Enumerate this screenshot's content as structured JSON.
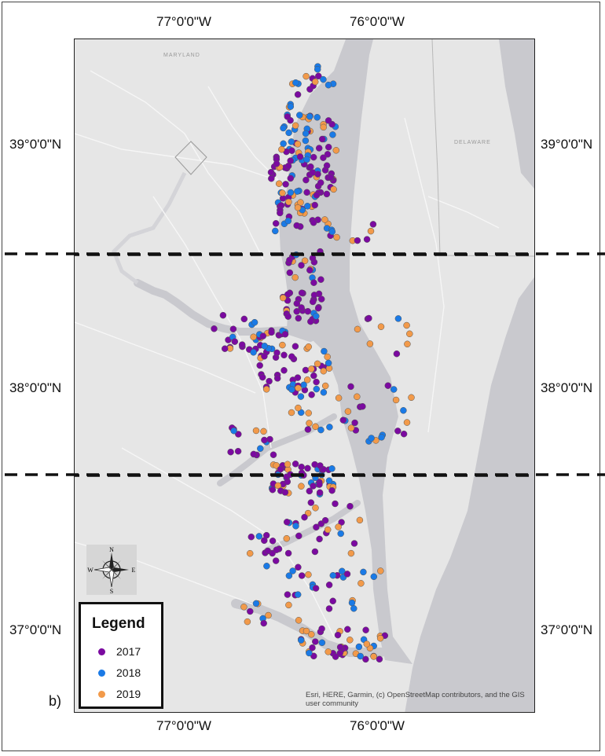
{
  "map": {
    "panel_label": "b)",
    "attribution": "Esri, HERE, Garmin, (c) OpenStreetMap contributors, and the GIS user community",
    "longitude_labels": [
      "77°0'0\"W",
      "76°0'0\"W"
    ],
    "latitude_labels": [
      "39°0'0\"N",
      "38°0'0\"N",
      "37°0'0\"N"
    ],
    "place_labels": [
      "MARYLAND",
      "DELAWARE"
    ],
    "region_divider_count": 2,
    "colors": {
      "land": "#e6e6e6",
      "water": "#c9c9ce",
      "ocean": "#c9c9ce",
      "divider": "#111111",
      "y2017": "#7b0aa0",
      "y2018": "#1a7ae6",
      "y2019": "#f29a4a"
    }
  },
  "compass": {
    "icon": "compass-rose-icon",
    "n": "N",
    "s": "S",
    "e": "E",
    "w": "W"
  },
  "legend": {
    "title": "Legend",
    "items": [
      {
        "label": "2017",
        "color": "#7b0aa0"
      },
      {
        "label": "2018",
        "color": "#1a7ae6"
      },
      {
        "label": "2019",
        "color": "#f29a4a"
      }
    ]
  }
}
